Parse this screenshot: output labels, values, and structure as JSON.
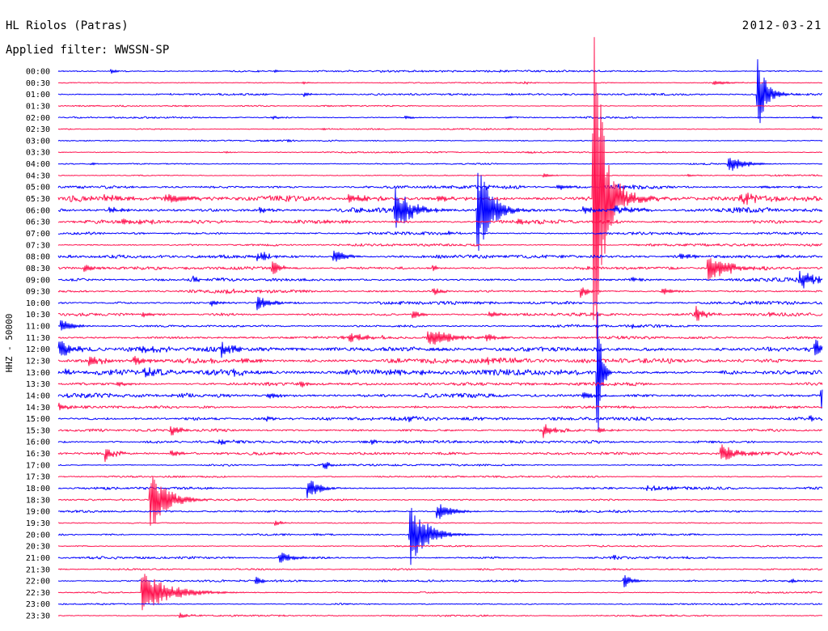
{
  "chart_data": {
    "type": "line",
    "title": "HL Riolos (Patras)",
    "date": "2012-03-21",
    "filter": "Applied filter: WWSSN-SP",
    "ylabel": "HHZ - 50000",
    "trace_scale_counts": 50000,
    "minutes_per_line": 30,
    "colors": {
      "background": "#ffffff",
      "text": "#000000",
      "even_lines": "#0000ff",
      "odd_lines": "#ff1450"
    },
    "rows": [
      {
        "time": "00:00",
        "noise": 3500,
        "events": [
          {
            "min": 2.06,
            "amp": 12000,
            "decay": 0.2
          },
          {
            "min": 8.5,
            "amp": 5000,
            "decay": 0.2
          },
          {
            "min": 17.1,
            "amp": 6000,
            "decay": 0.2
          }
        ]
      },
      {
        "time": "00:30",
        "noise": 2500,
        "events": [
          {
            "min": 9.6,
            "amp": 8000,
            "decay": 0.2
          },
          {
            "min": 18.3,
            "amp": 6000,
            "decay": 0.3
          },
          {
            "min": 25.7,
            "amp": 10000,
            "decay": 0.6
          }
        ]
      },
      {
        "time": "01:00",
        "noise": 3500,
        "events": [
          {
            "min": 9.65,
            "amp": 9000,
            "decay": 0.3
          },
          {
            "min": 27.45,
            "amp": 210000,
            "decay": 0.2
          },
          {
            "min": 27.6,
            "amp": 30000,
            "decay": 0.6
          }
        ]
      },
      {
        "time": "01:30",
        "noise": 2500,
        "events": []
      },
      {
        "time": "02:00",
        "noise": 3500,
        "events": [
          {
            "min": 8.35,
            "amp": 9000,
            "decay": 0.3
          },
          {
            "min": 13.6,
            "amp": 9000,
            "decay": 0.3
          },
          {
            "min": 17.55,
            "amp": 6000,
            "decay": 0.2
          },
          {
            "min": 29.6,
            "amp": 8000,
            "decay": 0.3
          }
        ]
      },
      {
        "time": "02:30",
        "noise": 2500,
        "events": [
          {
            "min": 10.4,
            "amp": 5000,
            "decay": 0.3
          }
        ]
      },
      {
        "time": "03:00",
        "noise": 3000,
        "events": [
          {
            "min": 9.0,
            "amp": 5000,
            "decay": 0.2
          }
        ]
      },
      {
        "time": "03:30",
        "noise": 2500,
        "events": [
          {
            "min": 6.5,
            "amp": 4000,
            "decay": 0.3
          },
          {
            "min": 18.3,
            "amp": 5000,
            "decay": 0.3
          }
        ]
      },
      {
        "time": "04:00",
        "noise": 3500,
        "events": [
          {
            "min": 1.27,
            "amp": 9000,
            "decay": 0.2
          },
          {
            "min": 26.3,
            "amp": 45000,
            "decay": 0.5
          }
        ]
      },
      {
        "time": "04:30",
        "noise": 3000,
        "events": [
          {
            "min": 19.05,
            "amp": 10000,
            "decay": 0.3
          },
          {
            "min": 24.7,
            "amp": 6000,
            "decay": 0.4
          }
        ]
      },
      {
        "time": "05:00",
        "noise": 6000,
        "events": [
          {
            "min": 16.8,
            "amp": 9000,
            "decay": 0.4
          },
          {
            "min": 19.6,
            "amp": 12000,
            "decay": 0.5
          },
          {
            "min": 22.0,
            "amp": 9000,
            "decay": 0.6
          },
          {
            "min": 27.6,
            "amp": 9000,
            "decay": 0.4
          }
        ]
      },
      {
        "time": "05:30",
        "noise": 11000,
        "events": [
          {
            "min": 1.8,
            "amp": 14000,
            "decay": 0.8
          },
          {
            "min": 4.2,
            "amp": 20000,
            "decay": 1.0
          },
          {
            "min": 11.4,
            "amp": 18000,
            "decay": 0.8
          },
          {
            "min": 14.9,
            "amp": 14000,
            "decay": 0.6
          },
          {
            "min": 21.0,
            "amp": 1050000,
            "decay": 0.3
          },
          {
            "min": 21.05,
            "amp": 80000,
            "decay": 1.0
          },
          {
            "min": 26.8,
            "amp": 18000,
            "decay": 0.8
          }
        ]
      },
      {
        "time": "06:00",
        "noise": 9000,
        "events": [
          {
            "min": 2.0,
            "amp": 12000,
            "decay": 0.6
          },
          {
            "min": 7.9,
            "amp": 12000,
            "decay": 0.5
          },
          {
            "min": 13.2,
            "amp": 100000,
            "decay": 0.6
          },
          {
            "min": 16.44,
            "amp": 230000,
            "decay": 0.5
          },
          {
            "min": 20.6,
            "amp": 15000,
            "decay": 0.5
          },
          {
            "min": 21.8,
            "amp": 18000,
            "decay": 0.8
          }
        ]
      },
      {
        "time": "06:30",
        "noise": 7000,
        "events": [
          {
            "min": 2.5,
            "amp": 12000,
            "decay": 0.6
          },
          {
            "min": 10.4,
            "amp": 10000,
            "decay": 0.4
          },
          {
            "min": 18.0,
            "amp": 9000,
            "decay": 0.5
          }
        ]
      },
      {
        "time": "07:00",
        "noise": 5000,
        "events": [
          {
            "min": 15.3,
            "amp": 9000,
            "decay": 0.3
          }
        ]
      },
      {
        "time": "07:30",
        "noise": 4500,
        "events": []
      },
      {
        "time": "08:00",
        "noise": 6000,
        "events": [
          {
            "min": 7.8,
            "amp": 20000,
            "decay": 0.5
          },
          {
            "min": 10.8,
            "amp": 38000,
            "decay": 0.4
          },
          {
            "min": 24.4,
            "amp": 14000,
            "decay": 0.4
          },
          {
            "min": 28.2,
            "amp": 12000,
            "decay": 0.3
          }
        ]
      },
      {
        "time": "08:30",
        "noise": 6000,
        "events": [
          {
            "min": 1.0,
            "amp": 22000,
            "decay": 0.4
          },
          {
            "min": 8.4,
            "amp": 38000,
            "decay": 0.3
          },
          {
            "min": 14.7,
            "amp": 16000,
            "decay": 0.2
          },
          {
            "min": 25.5,
            "amp": 60000,
            "decay": 0.7
          }
        ]
      },
      {
        "time": "09:00",
        "noise": 7000,
        "events": [
          {
            "min": 5.3,
            "amp": 12000,
            "decay": 0.3
          },
          {
            "min": 22.5,
            "amp": 12000,
            "decay": 0.3
          },
          {
            "min": 29.1,
            "amp": 42000,
            "decay": 0.5
          }
        ]
      },
      {
        "time": "09:30",
        "noise": 6000,
        "events": [
          {
            "min": 6.6,
            "amp": 12000,
            "decay": 0.2
          },
          {
            "min": 14.7,
            "amp": 22000,
            "decay": 0.3
          },
          {
            "min": 20.5,
            "amp": 28000,
            "decay": 0.3
          },
          {
            "min": 23.7,
            "amp": 16000,
            "decay": 0.4
          }
        ]
      },
      {
        "time": "10:00",
        "noise": 6000,
        "events": [
          {
            "min": 5.97,
            "amp": 14000,
            "decay": 0.5
          },
          {
            "min": 7.8,
            "amp": 32000,
            "decay": 0.5
          }
        ]
      },
      {
        "time": "10:30",
        "noise": 6000,
        "events": [
          {
            "min": 3.3,
            "amp": 14000,
            "decay": 0.3
          },
          {
            "min": 13.9,
            "amp": 22000,
            "decay": 0.3
          },
          {
            "min": 16.9,
            "amp": 16000,
            "decay": 0.3
          },
          {
            "min": 25.0,
            "amp": 38000,
            "decay": 0.3
          },
          {
            "min": 27.9,
            "amp": 10000,
            "decay": 0.3
          }
        ]
      },
      {
        "time": "11:00",
        "noise": 5000,
        "events": [
          {
            "min": 0.1,
            "amp": 32000,
            "decay": 0.4
          },
          {
            "min": 22.5,
            "amp": 12000,
            "decay": 0.3
          }
        ]
      },
      {
        "time": "11:30",
        "noise": 7500,
        "events": [
          {
            "min": 11.4,
            "amp": 16000,
            "decay": 0.8
          },
          {
            "min": 14.5,
            "amp": 42000,
            "decay": 0.8
          },
          {
            "min": 16.8,
            "amp": 14000,
            "decay": 0.4
          }
        ]
      },
      {
        "time": "12:00",
        "noise": 8000,
        "events": [
          {
            "min": 0.03,
            "amp": 48000,
            "decay": 0.4
          },
          {
            "min": 3.3,
            "amp": 14000,
            "decay": 0.6
          },
          {
            "min": 6.4,
            "amp": 32000,
            "decay": 0.4
          },
          {
            "min": 29.7,
            "amp": 58000,
            "decay": 0.3
          }
        ]
      },
      {
        "time": "12:30",
        "noise": 9000,
        "events": [
          {
            "min": 1.2,
            "amp": 22000,
            "decay": 0.6
          },
          {
            "min": 2.95,
            "amp": 20000,
            "decay": 0.5
          },
          {
            "min": 7.2,
            "amp": 12000,
            "decay": 0.4
          },
          {
            "min": 16.8,
            "amp": 12000,
            "decay": 1.0
          }
        ]
      },
      {
        "time": "13:00",
        "noise": 10000,
        "events": [
          {
            "min": 0.25,
            "amp": 14000,
            "decay": 0.4
          },
          {
            "min": 3.4,
            "amp": 16000,
            "decay": 0.5
          },
          {
            "min": 6.9,
            "amp": 14000,
            "decay": 0.4
          },
          {
            "min": 14.2,
            "amp": 12000,
            "decay": 0.4
          },
          {
            "min": 21.15,
            "amp": 400000,
            "decay": 0.15
          }
        ]
      },
      {
        "time": "13:30",
        "noise": 6000,
        "events": [
          {
            "min": 2.3,
            "amp": 12000,
            "decay": 0.4
          },
          {
            "min": 9.5,
            "amp": 14000,
            "decay": 0.4
          }
        ]
      },
      {
        "time": "14:00",
        "noise": 8000,
        "events": [
          {
            "min": 8.2,
            "amp": 14000,
            "decay": 0.5
          },
          {
            "min": 20.6,
            "amp": 16000,
            "decay": 0.5
          },
          {
            "min": 29.95,
            "amp": 55000,
            "decay": 0.3
          }
        ]
      },
      {
        "time": "14:30",
        "noise": 4500,
        "events": [
          {
            "min": 0.03,
            "amp": 16000,
            "decay": 0.3
          }
        ]
      },
      {
        "time": "15:00",
        "noise": 6000,
        "events": [
          {
            "min": 8.2,
            "amp": 12000,
            "decay": 0.4
          },
          {
            "min": 13.6,
            "amp": 12000,
            "decay": 0.4
          },
          {
            "min": 29.5,
            "amp": 14000,
            "decay": 0.3
          }
        ]
      },
      {
        "time": "15:30",
        "noise": 6000,
        "events": [
          {
            "min": 4.4,
            "amp": 26000,
            "decay": 0.3
          },
          {
            "min": 19.05,
            "amp": 32000,
            "decay": 0.3
          },
          {
            "min": 21.2,
            "amp": 16000,
            "decay": 0.3
          }
        ]
      },
      {
        "time": "16:00",
        "noise": 5000,
        "events": [
          {
            "min": 6.3,
            "amp": 12000,
            "decay": 0.5
          },
          {
            "min": 12.3,
            "amp": 9000,
            "decay": 0.3
          }
        ]
      },
      {
        "time": "16:30",
        "noise": 6000,
        "events": [
          {
            "min": 1.84,
            "amp": 36000,
            "decay": 0.3
          },
          {
            "min": 4.4,
            "amp": 22000,
            "decay": 0.3
          },
          {
            "min": 26.0,
            "amp": 42000,
            "decay": 0.6
          }
        ]
      },
      {
        "time": "17:00",
        "noise": 3500,
        "events": [
          {
            "min": 10.4,
            "amp": 20000,
            "decay": 0.3
          }
        ]
      },
      {
        "time": "17:30",
        "noise": 3000,
        "events": []
      },
      {
        "time": "18:00",
        "noise": 4500,
        "events": [
          {
            "min": 9.78,
            "amp": 58000,
            "decay": 0.4
          },
          {
            "min": 23.1,
            "amp": 9000,
            "decay": 1.0
          }
        ]
      },
      {
        "time": "18:30",
        "noise": 3000,
        "events": [
          {
            "min": 3.59,
            "amp": 145000,
            "decay": 0.6
          }
        ]
      },
      {
        "time": "19:00",
        "noise": 4500,
        "events": [
          {
            "min": 14.86,
            "amp": 42000,
            "decay": 0.5
          }
        ]
      },
      {
        "time": "19:30",
        "noise": 4000,
        "events": [
          {
            "min": 8.5,
            "amp": 12000,
            "decay": 0.3
          }
        ]
      },
      {
        "time": "20:00",
        "noise": 3500,
        "events": [
          {
            "min": 13.8,
            "amp": 145000,
            "decay": 0.6
          }
        ]
      },
      {
        "time": "20:30",
        "noise": 3000,
        "events": []
      },
      {
        "time": "21:00",
        "noise": 4500,
        "events": [
          {
            "min": 8.67,
            "amp": 24000,
            "decay": 0.6
          },
          {
            "min": 21.8,
            "amp": 9000,
            "decay": 0.3
          }
        ]
      },
      {
        "time": "21:30",
        "noise": 3000,
        "events": []
      },
      {
        "time": "22:00",
        "noise": 3500,
        "events": [
          {
            "min": 7.75,
            "amp": 32000,
            "decay": 0.2
          },
          {
            "min": 22.2,
            "amp": 32000,
            "decay": 0.3
          },
          {
            "min": 28.7,
            "amp": 10000,
            "decay": 0.3
          }
        ]
      },
      {
        "time": "22:30",
        "noise": 3000,
        "events": [
          {
            "min": 3.27,
            "amp": 95000,
            "decay": 1.0
          }
        ]
      },
      {
        "time": "23:00",
        "noise": 3000,
        "events": []
      },
      {
        "time": "23:30",
        "noise": 3000,
        "events": [
          {
            "min": 4.76,
            "amp": 14000,
            "decay": 0.3
          }
        ]
      }
    ]
  }
}
